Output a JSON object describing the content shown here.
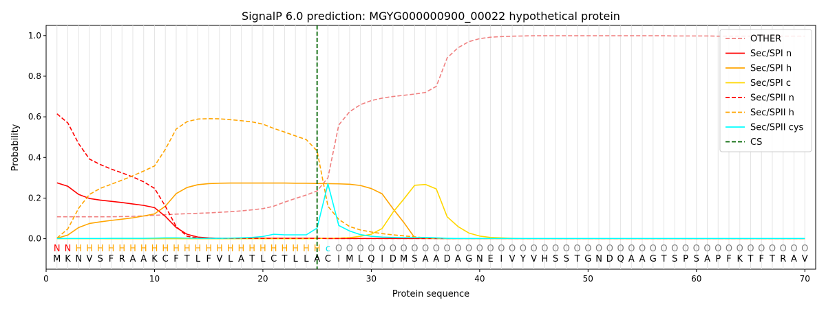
{
  "chart_data": {
    "type": "line",
    "title": "SignalP 6.0 prediction: MGYG000000900_00022 hypothetical protein",
    "xlabel": "Protein sequence",
    "ylabel": "Probability",
    "xlim": [
      0,
      71
    ],
    "ylim": [
      -0.15,
      1.05
    ],
    "x_ticks": [
      0,
      10,
      20,
      30,
      40,
      50,
      60,
      70
    ],
    "y_ticks": [
      0.0,
      0.2,
      0.4,
      0.6,
      0.8,
      1.0
    ],
    "x_tick_labels": [
      "0",
      "10",
      "20",
      "30",
      "40",
      "50",
      "60",
      "70"
    ],
    "y_tick_labels": [
      "0.0",
      "0.2",
      "0.4",
      "0.6",
      "0.8",
      "1.0"
    ],
    "grid": "vertical lines at each residue",
    "legend_position": "top-right",
    "cleavage_site": 25,
    "sequence": [
      "M",
      "K",
      "N",
      "V",
      "S",
      "F",
      "R",
      "A",
      "A",
      "K",
      "C",
      "F",
      "T",
      "L",
      "F",
      "V",
      "L",
      "A",
      "T",
      "L",
      "C",
      "T",
      "L",
      "L",
      "A",
      "C",
      "I",
      "M",
      "L",
      "Q",
      "I",
      "D",
      "M",
      "S",
      "A",
      "A",
      "D",
      "A",
      "G",
      "N",
      "E",
      "I",
      "V",
      "Y",
      "V",
      "H",
      "S",
      "S",
      "T",
      "G",
      "N",
      "D",
      "Q",
      "A",
      "A",
      "G",
      "T",
      "S",
      "P",
      "S",
      "A",
      "P",
      "F",
      "K",
      "T",
      "F",
      "T",
      "R",
      "A",
      "V"
    ],
    "region_labels": [
      "N",
      "N",
      "H",
      "H",
      "H",
      "H",
      "H",
      "H",
      "H",
      "H",
      "H",
      "H",
      "H",
      "H",
      "H",
      "H",
      "H",
      "H",
      "H",
      "H",
      "H",
      "H",
      "H",
      "H",
      "H",
      "c",
      "O",
      "O",
      "O",
      "O",
      "O",
      "O",
      "O",
      "O",
      "O",
      "O",
      "O",
      "O",
      "O",
      "O",
      "O",
      "O",
      "O",
      "O",
      "O",
      "O",
      "O",
      "O",
      "O",
      "O",
      "O",
      "O",
      "O",
      "O",
      "O",
      "O",
      "O",
      "O",
      "O",
      "O",
      "O",
      "O",
      "O",
      "O",
      "O",
      "O",
      "O",
      "O",
      "O",
      "O"
    ],
    "region_colors": {
      "N": "#ff0000",
      "H": "#ffa500",
      "c": "#00e5ee",
      "O": "#808080"
    },
    "series": [
      {
        "name": "OTHER",
        "color": "#f08080",
        "dash": "dashed",
        "values": [
          0.108,
          0.108,
          0.108,
          0.108,
          0.108,
          0.108,
          0.109,
          0.11,
          0.112,
          0.115,
          0.118,
          0.121,
          0.123,
          0.125,
          0.127,
          0.13,
          0.133,
          0.137,
          0.142,
          0.148,
          0.16,
          0.18,
          0.198,
          0.215,
          0.235,
          0.3,
          0.56,
          0.625,
          0.66,
          0.68,
          0.692,
          0.7,
          0.706,
          0.712,
          0.72,
          0.75,
          0.89,
          0.94,
          0.97,
          0.985,
          0.992,
          0.995,
          0.997,
          0.998,
          0.999,
          0.999,
          0.999,
          0.999,
          0.999,
          0.999,
          0.999,
          0.999,
          0.999,
          0.999,
          0.999,
          0.999,
          0.999,
          0.998,
          0.998,
          0.998,
          0.998,
          0.997,
          0.997,
          0.997,
          0.997,
          0.997,
          0.997,
          0.997,
          0.997,
          0.997
        ]
      },
      {
        "name": "Sec/SPI n",
        "color": "#ff0000",
        "dash": "solid",
        "values": [
          0.275,
          0.258,
          0.218,
          0.198,
          0.19,
          0.184,
          0.178,
          0.171,
          0.164,
          0.153,
          0.11,
          0.055,
          0.022,
          0.008,
          0.004,
          0.002,
          0.002,
          0.002,
          0.002,
          0.002,
          0.002,
          0.002,
          0.002,
          0.002,
          0.002,
          0.001,
          0.001,
          0.001,
          0.001,
          0.001,
          0.001,
          0.001,
          0.001,
          0.001,
          0.001,
          0.001,
          0.001,
          0.001,
          0.001,
          0.001,
          0.001,
          0.001,
          0.001,
          0.001,
          0.001,
          0.001,
          0.001,
          0.001,
          0.001,
          0.001,
          0.001,
          0.001,
          0.001,
          0.001,
          0.001,
          0.001,
          0.001,
          0.001,
          0.001,
          0.001,
          0.001,
          0.001,
          0.001,
          0.001,
          0.001,
          0.001,
          0.001,
          0.001,
          0.001,
          0.001
        ]
      },
      {
        "name": "Sec/SPI h",
        "color": "#ffa500",
        "dash": "solid",
        "values": [
          0.002,
          0.018,
          0.055,
          0.075,
          0.083,
          0.09,
          0.096,
          0.103,
          0.112,
          0.122,
          0.16,
          0.222,
          0.252,
          0.266,
          0.271,
          0.273,
          0.274,
          0.274,
          0.274,
          0.274,
          0.274,
          0.274,
          0.273,
          0.273,
          0.272,
          0.271,
          0.27,
          0.268,
          0.262,
          0.247,
          0.221,
          0.148,
          0.08,
          0.005,
          0.002,
          0.001,
          0.001,
          0.001,
          0.001,
          0.001,
          0.001,
          0.001,
          0.001,
          0.001,
          0.001,
          0.001,
          0.001,
          0.001,
          0.001,
          0.001,
          0.001,
          0.001,
          0.001,
          0.001,
          0.001,
          0.001,
          0.001,
          0.001,
          0.001,
          0.001,
          0.001,
          0.001,
          0.001,
          0.001,
          0.001,
          0.001,
          0.001,
          0.001,
          0.001,
          0.001
        ]
      },
      {
        "name": "Sec/SPI c",
        "color": "#ffd700",
        "dash": "solid",
        "values": [
          0.0,
          0.0,
          0.0,
          0.0,
          0.0,
          0.0,
          0.0,
          0.0,
          0.0,
          0.0,
          0.0,
          0.0,
          0.0,
          0.0,
          0.0,
          0.0,
          0.0,
          0.0,
          0.0,
          0.0,
          0.0,
          0.0,
          0.0,
          0.0,
          0.001,
          0.002,
          0.003,
          0.005,
          0.012,
          0.022,
          0.05,
          0.13,
          0.195,
          0.263,
          0.267,
          0.245,
          0.108,
          0.06,
          0.028,
          0.013,
          0.006,
          0.004,
          0.002,
          0.001,
          0.001,
          0.001,
          0.001,
          0.001,
          0.001,
          0.001,
          0.001,
          0.001,
          0.001,
          0.001,
          0.001,
          0.001,
          0.001,
          0.001,
          0.001,
          0.001,
          0.001,
          0.001,
          0.001,
          0.001,
          0.001,
          0.001,
          0.001,
          0.001,
          0.001,
          0.001
        ]
      },
      {
        "name": "Sec/SPII n",
        "color": "#ff0000",
        "dash": "dashed",
        "values": [
          0.615,
          0.57,
          0.468,
          0.392,
          0.365,
          0.343,
          0.324,
          0.304,
          0.28,
          0.248,
          0.16,
          0.06,
          0.012,
          0.004,
          0.002,
          0.002,
          0.002,
          0.002,
          0.002,
          0.002,
          0.002,
          0.002,
          0.002,
          0.002,
          0.002,
          0.001,
          0.001,
          0.001,
          0.001,
          0.001,
          0.001,
          0.001,
          0.001,
          0.001,
          0.001,
          0.001,
          0.001,
          0.001,
          0.001,
          0.001,
          0.001,
          0.001,
          0.001,
          0.001,
          0.001,
          0.001,
          0.001,
          0.001,
          0.001,
          0.001,
          0.001,
          0.001,
          0.001,
          0.001,
          0.001,
          0.001,
          0.001,
          0.001,
          0.001,
          0.001,
          0.001,
          0.001,
          0.001,
          0.001,
          0.001,
          0.001,
          0.001,
          0.001,
          0.001,
          0.001
        ]
      },
      {
        "name": "Sec/SPII h",
        "color": "#ffa500",
        "dash": "dashed",
        "values": [
          0.003,
          0.048,
          0.15,
          0.218,
          0.248,
          0.268,
          0.288,
          0.31,
          0.333,
          0.358,
          0.44,
          0.54,
          0.576,
          0.589,
          0.591,
          0.59,
          0.586,
          0.581,
          0.575,
          0.564,
          0.543,
          0.525,
          0.506,
          0.488,
          0.432,
          0.16,
          0.095,
          0.06,
          0.043,
          0.033,
          0.025,
          0.019,
          0.014,
          0.009,
          0.004,
          0.002,
          0.001,
          0.001,
          0.001,
          0.001,
          0.001,
          0.001,
          0.001,
          0.001,
          0.001,
          0.001,
          0.001,
          0.001,
          0.001,
          0.001,
          0.001,
          0.001,
          0.001,
          0.001,
          0.001,
          0.001,
          0.001,
          0.001,
          0.001,
          0.001,
          0.001,
          0.001,
          0.001,
          0.001,
          0.001,
          0.001,
          0.001,
          0.001,
          0.001,
          0.001
        ]
      },
      {
        "name": "Sec/SPII cys",
        "color": "#00ffff",
        "dash": "solid",
        "values": [
          0.001,
          0.001,
          0.001,
          0.001,
          0.001,
          0.002,
          0.002,
          0.002,
          0.002,
          0.003,
          0.004,
          0.004,
          0.003,
          0.002,
          0.002,
          0.002,
          0.003,
          0.004,
          0.006,
          0.011,
          0.022,
          0.019,
          0.019,
          0.019,
          0.052,
          0.27,
          0.065,
          0.038,
          0.02,
          0.012,
          0.008,
          0.006,
          0.005,
          0.005,
          0.006,
          0.004,
          0.002,
          0.001,
          0.001,
          0.001,
          0.001,
          0.001,
          0.001,
          0.001,
          0.001,
          0.001,
          0.001,
          0.001,
          0.001,
          0.001,
          0.001,
          0.001,
          0.001,
          0.001,
          0.001,
          0.001,
          0.001,
          0.001,
          0.001,
          0.001,
          0.001,
          0.001,
          0.001,
          0.001,
          0.001,
          0.001,
          0.001,
          0.001,
          0.001,
          0.001
        ]
      },
      {
        "name": "CS",
        "color": "#006400",
        "dash": "dashed",
        "x": 25
      }
    ]
  }
}
